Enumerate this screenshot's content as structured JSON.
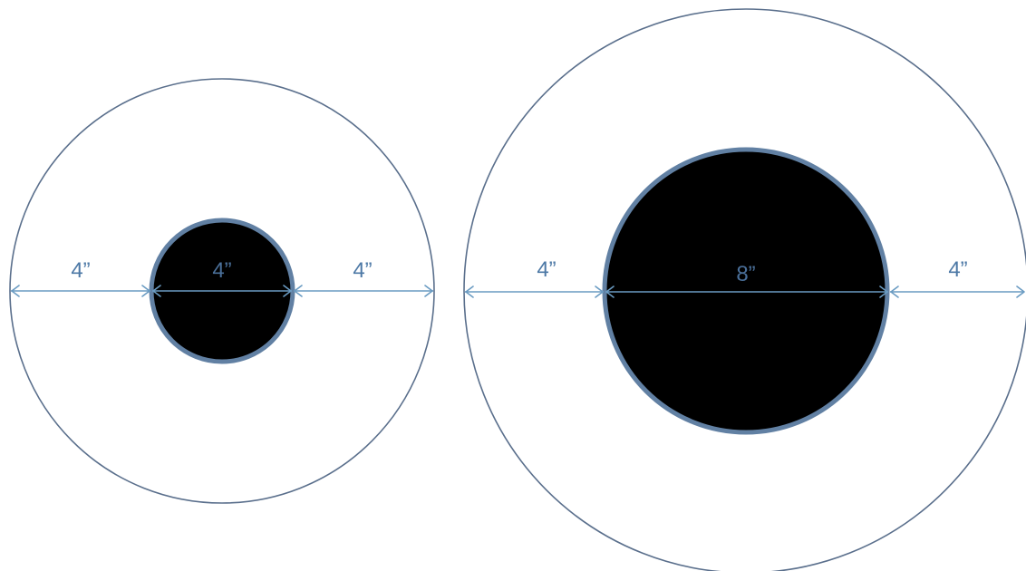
{
  "colors": {
    "ring_stroke": "#5a6f8c",
    "core_fill": "#000000",
    "core_stroke": "#6180a3",
    "dimension_line": "#6a9bc2",
    "label_text": "#4d79a6"
  },
  "left_target": {
    "left_gap_label": "4”",
    "core_label": "4”",
    "right_gap_label": "4”"
  },
  "right_target": {
    "left_gap_label": "4”",
    "core_label": "8”",
    "right_gap_label": "4”"
  }
}
